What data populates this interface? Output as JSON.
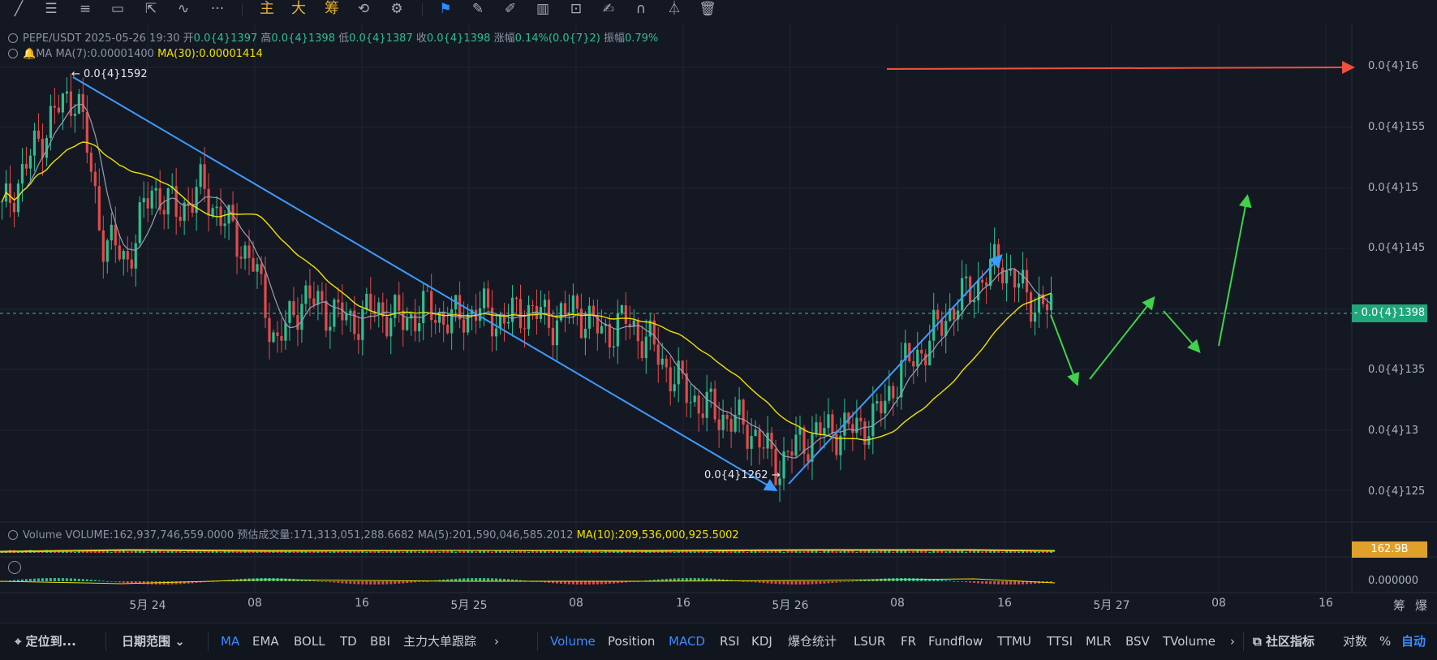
{
  "toolbar": {
    "cn_tools": [
      "主",
      "大",
      "筹"
    ],
    "icons": [
      "trend-line-icon",
      "horizontal-lines-icon",
      "fib-icon",
      "rectangle-icon",
      "cursor-icon",
      "wave-icon",
      "more-icon",
      "bookmark-icon",
      "ruler-icon",
      "brush-icon",
      "candles-icon",
      "lock-icon",
      "note-icon",
      "magnet-icon",
      "filter-icon",
      "trash-icon"
    ],
    "more_label": "···"
  },
  "legend": {
    "symbol": "PEPE/USDT",
    "datetime": "2025-05-26 19:30",
    "open_label": "开",
    "open": "0.0{4}1397",
    "high_label": "高",
    "high": "0.0{4}1398",
    "low_label": "低",
    "low": "0.0{4}1387",
    "close_label": "收",
    "close": "0.0{4}1398",
    "change_label": "涨幅",
    "change": "0.14%(0.0{7}2)",
    "amp_label": "振幅",
    "amp": "0.79%"
  },
  "ma_legend": {
    "label": "MA",
    "ma7": "MA(7):0.00001400",
    "ma30": "MA(30):0.00001414"
  },
  "volume_legend": {
    "label": "Volume",
    "volume": "VOLUME:162,937,746,559.0000",
    "estimate": "预估成交量:171,313,051,288.6682",
    "ma5": "MA(5):201,590,046,585.2012",
    "ma10": "MA(10):209,536,000,925.5002"
  },
  "price_axis": [
    "0.0{4}16",
    "0.0{4}155",
    "0.0{4}15",
    "0.0{4}145",
    "0.0{4}135",
    "0.0{4}13",
    "0.0{4}125"
  ],
  "current_price": "0.0{4}1398",
  "volume_tag": "162.9B",
  "macd_axis": "0.000000",
  "time_axis": [
    "5月 24",
    "08",
    "16",
    "5月 25",
    "08",
    "16",
    "5月 26",
    "08",
    "16",
    "5月 27",
    "08",
    "16"
  ],
  "axis_corner": [
    "筹",
    "爆"
  ],
  "annotations": {
    "high_label": "0.0{4}1592",
    "low_label": "0.0{4}1262"
  },
  "bottom_bar": {
    "locate": "定位到...",
    "date_range": "日期范围",
    "main_indicators": [
      "MA",
      "EMA",
      "BOLL",
      "TD",
      "BBI",
      "主力大单跟踪"
    ],
    "sub_indicators": [
      "Volume",
      "Position",
      "MACD",
      "RSI",
      "KDJ",
      "爆仓统计",
      "LSUR",
      "FR",
      "Fundflow",
      "TTMU",
      "TTSI",
      "MLR",
      "BSV",
      "TVolume"
    ],
    "community": "社区指标",
    "log": "对数",
    "percent": "%",
    "auto": "自动"
  },
  "colors": {
    "background": "#141823",
    "up": "#2fbf8f",
    "down": "#e24a4a",
    "ma7": "#9aa0b8",
    "ma30": "#f0e100",
    "trend": "#3d9bff",
    "projection": "#3fd24a",
    "target": "#f0503c"
  },
  "chart_data": {
    "type": "candlestick",
    "y_range": [
      1.23e-05,
      1.61e-05
    ],
    "ohlc_path_close": [
      1.48e-05,
      1.52e-05,
      1.56e-05,
      1.58e-05,
      1.46e-05,
      1.44e-05,
      1.5e-05,
      1.48e-05,
      1.5e-05,
      1.47e-05,
      1.44e-05,
      1.37e-05,
      1.41e-05,
      1.4e-05,
      1.39e-05,
      1.4e-05,
      1.39e-05,
      1.4e-05,
      1.39e-05,
      1.4e-05,
      1.39e-05,
      1.4e-05,
      1.39e-05,
      1.4e-05,
      1.38e-05,
      1.39e-05,
      1.37e-05,
      1.34e-05,
      1.32e-05,
      1.31e-05,
      1.3e-05,
      1.27e-05,
      1.29e-05,
      1.3e-05,
      1.3e-05,
      1.31e-05,
      1.35e-05,
      1.37e-05,
      1.4e-05,
      1.42e-05,
      1.44e-05,
      1.41e-05,
      1.4e-05
    ]
  }
}
